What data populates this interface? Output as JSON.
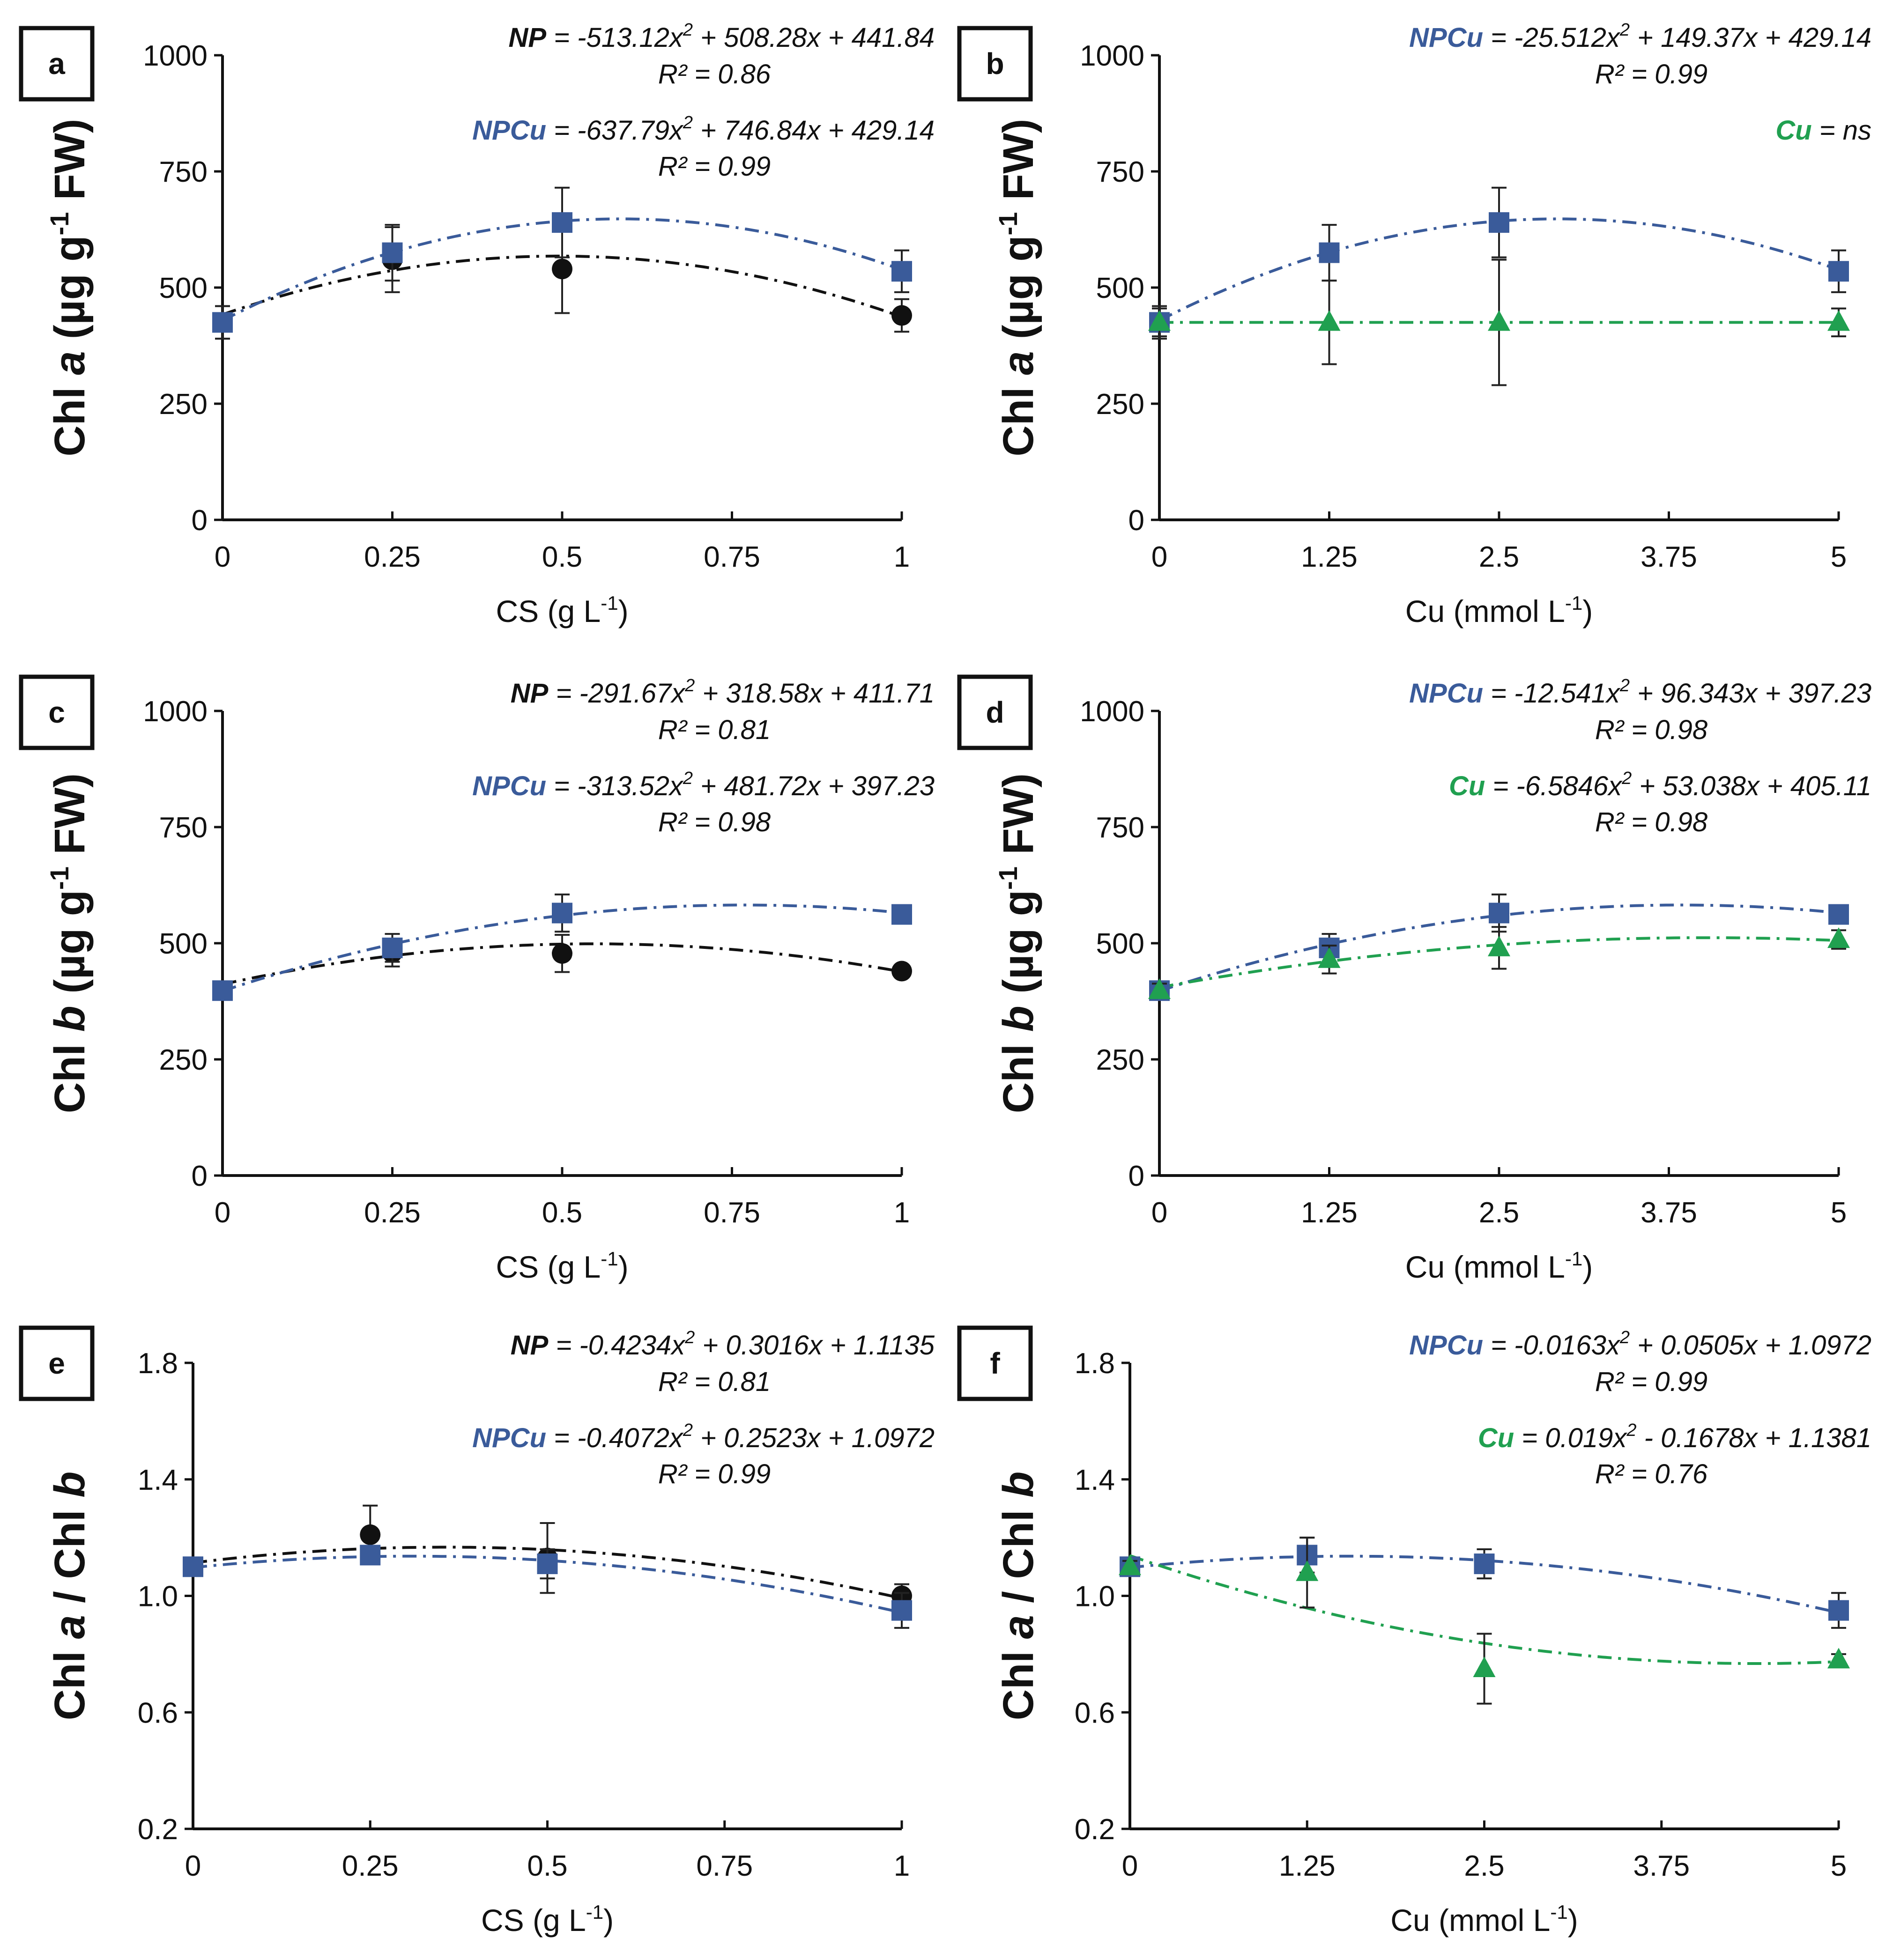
{
  "colors": {
    "NP": "#111111",
    "NPCu": "#3a5b9a",
    "Cu": "#20a050"
  },
  "chart_data": [
    {
      "type": "scatter",
      "panel": "a",
      "ylabel_pre": "Chl ",
      "ylabel_italic": "a",
      "ylabel_post": " (µg g",
      "ylabel_sup": "-1",
      "ylabel_end": " FW)",
      "xlabel": "CS (g L",
      "xlabel_sup": "-1",
      "xlabel_end": ")",
      "ylim": [
        0,
        1000
      ],
      "yticks": [
        0,
        250,
        500,
        750,
        1000
      ],
      "ytick_labels": [
        "0",
        "250",
        "500",
        "750",
        "1000"
      ],
      "xlim": [
        0,
        1
      ],
      "xticks": [
        0,
        0.25,
        0.5,
        0.75,
        1
      ],
      "xtick_labels": [
        "0",
        "0.25",
        "0.5",
        "0.75",
        "1"
      ],
      "series": [
        {
          "name": "NP",
          "marker": "circle",
          "x": [
            0,
            0.25,
            0.5,
            1
          ],
          "values": [
            425,
            560,
            540,
            440
          ],
          "errors": [
            35,
            70,
            95,
            35
          ],
          "fit": [
            -513.12,
            508.28,
            441.84
          ]
        },
        {
          "name": "NPCu",
          "marker": "square",
          "x": [
            0,
            0.25,
            0.5,
            1
          ],
          "values": [
            425,
            575,
            640,
            535
          ],
          "errors": [
            35,
            60,
            75,
            45
          ],
          "fit": [
            -637.79,
            746.84,
            429.14
          ]
        }
      ],
      "equations": [
        {
          "name": "NP",
          "rest": " = -513.12x",
          "sup": "2",
          "tail": " + 508.28x + 441.84",
          "r2": "R² = 0.86"
        },
        {
          "name": "NPCu",
          "rest": " = -637.79x",
          "sup": "2",
          "tail": " + 746.84x + 429.14",
          "r2": "R² = 0.99"
        }
      ]
    },
    {
      "type": "scatter",
      "panel": "b",
      "ylabel_pre": "Chl ",
      "ylabel_italic": "a",
      "ylabel_post": " (µg g",
      "ylabel_sup": "-1",
      "ylabel_end": " FW)",
      "xlabel": "Cu (mmol L",
      "xlabel_sup": "-1",
      "xlabel_end": ")",
      "ylim": [
        0,
        1000
      ],
      "yticks": [
        0,
        250,
        500,
        750,
        1000
      ],
      "ytick_labels": [
        "0",
        "250",
        "500",
        "750",
        "1000"
      ],
      "xlim": [
        0,
        5
      ],
      "xticks": [
        0,
        1.25,
        2.5,
        3.75,
        5
      ],
      "xtick_labels": [
        "0",
        "1.25",
        "2.5",
        "3.75",
        "5"
      ],
      "series": [
        {
          "name": "NPCu",
          "marker": "square",
          "x": [
            0,
            1.25,
            2.5,
            5
          ],
          "values": [
            425,
            575,
            640,
            535
          ],
          "errors": [
            35,
            60,
            75,
            45
          ],
          "fit": [
            -25.512,
            149.37,
            429.14
          ]
        },
        {
          "name": "Cu",
          "marker": "triangle",
          "x": [
            0,
            1.25,
            2.5,
            5
          ],
          "values": [
            425,
            425,
            425,
            425
          ],
          "errors": [
            30,
            90,
            135,
            30
          ],
          "fit": [
            0,
            0,
            425
          ]
        }
      ],
      "equations": [
        {
          "name": "NPCu",
          "rest": " = -25.512x",
          "sup": "2",
          "tail": " + 149.37x + 429.14",
          "r2": "R² = 0.99"
        },
        {
          "name": "Cu",
          "rest": " = ns",
          "sup": "",
          "tail": "",
          "r2": ""
        }
      ]
    },
    {
      "type": "scatter",
      "panel": "c",
      "ylabel_pre": "Chl ",
      "ylabel_italic": "b",
      "ylabel_post": " (µg g",
      "ylabel_sup": "-1",
      "ylabel_end": " FW)",
      "xlabel": "CS (g L",
      "xlabel_sup": "-1",
      "xlabel_end": ")",
      "ylim": [
        0,
        1000
      ],
      "yticks": [
        0,
        250,
        500,
        750,
        1000
      ],
      "ytick_labels": [
        "0",
        "250",
        "500",
        "750",
        "1000"
      ],
      "xlim": [
        0,
        1
      ],
      "xticks": [
        0,
        0.25,
        0.5,
        0.75,
        1
      ],
      "xtick_labels": [
        "0",
        "0.25",
        "0.5",
        "0.75",
        "1"
      ],
      "series": [
        {
          "name": "NP",
          "marker": "circle",
          "x": [
            0,
            0.25,
            0.5,
            1
          ],
          "values": [
            398,
            480,
            478,
            440
          ],
          "errors": [
            15,
            30,
            40,
            10
          ],
          "fit": [
            -291.67,
            318.58,
            411.71
          ]
        },
        {
          "name": "NPCu",
          "marker": "square",
          "x": [
            0,
            0.25,
            0.5,
            1
          ],
          "values": [
            398,
            490,
            565,
            562
          ],
          "errors": [
            15,
            30,
            40,
            10
          ],
          "fit": [
            -313.52,
            481.72,
            397.23
          ]
        }
      ],
      "equations": [
        {
          "name": "NP",
          "rest": " = -291.67x",
          "sup": "2",
          "tail": " + 318.58x + 411.71",
          "r2": "R² = 0.81"
        },
        {
          "name": "NPCu",
          "rest": " = -313.52x",
          "sup": "2",
          "tail": " + 481.72x + 397.23",
          "r2": "R² = 0.98"
        }
      ]
    },
    {
      "type": "scatter",
      "panel": "d",
      "ylabel_pre": "Chl ",
      "ylabel_italic": "b",
      "ylabel_post": " (µg g",
      "ylabel_sup": "-1",
      "ylabel_end": " FW)",
      "xlabel": "Cu (mmol L",
      "xlabel_sup": "-1",
      "xlabel_end": ")",
      "ylim": [
        0,
        1000
      ],
      "yticks": [
        0,
        250,
        500,
        750,
        1000
      ],
      "ytick_labels": [
        "0",
        "250",
        "500",
        "750",
        "1000"
      ],
      "xlim": [
        0,
        5
      ],
      "xticks": [
        0,
        1.25,
        2.5,
        3.75,
        5
      ],
      "xtick_labels": [
        "0",
        "1.25",
        "2.5",
        "3.75",
        "5"
      ],
      "series": [
        {
          "name": "NPCu",
          "marker": "square",
          "x": [
            0,
            1.25,
            2.5,
            5
          ],
          "values": [
            398,
            490,
            565,
            562
          ],
          "errors": [
            15,
            30,
            40,
            10
          ],
          "fit": [
            -12.541,
            96.343,
            397.23
          ]
        },
        {
          "name": "Cu",
          "marker": "triangle",
          "x": [
            0,
            1.25,
            2.5,
            5
          ],
          "values": [
            398,
            465,
            490,
            508
          ],
          "errors": [
            15,
            30,
            45,
            20
          ],
          "fit": [
            -6.5846,
            53.038,
            405.11
          ]
        }
      ],
      "equations": [
        {
          "name": "NPCu",
          "rest": " = -12.541x",
          "sup": "2",
          "tail": " + 96.343x + 397.23",
          "r2": "R² = 0.98"
        },
        {
          "name": "Cu",
          "rest": " = -6.5846x",
          "sup": "2",
          "tail": " + 53.038x + 405.11",
          "r2": "R² = 0.98"
        }
      ]
    },
    {
      "type": "scatter",
      "panel": "e",
      "ylabel_pre": "Chl ",
      "ylabel_italic": "a",
      "ylabel_post": " / Chl ",
      "ylabel_sup": "",
      "ylabel_end": "",
      "ylabel_italic2": "b",
      "xlabel": "CS (g L",
      "xlabel_sup": "-1",
      "xlabel_end": ")",
      "ylim": [
        0.2,
        1.8
      ],
      "yticks": [
        0.2,
        0.6,
        1.0,
        1.4,
        1.8
      ],
      "ytick_labels": [
        "0.2",
        "0.6",
        "1.0",
        "1.4",
        "1.8"
      ],
      "xlim": [
        0,
        1
      ],
      "xticks": [
        0,
        0.25,
        0.5,
        0.75,
        1
      ],
      "xtick_labels": [
        "0",
        "0.25",
        "0.5",
        "0.75",
        "1"
      ],
      "series": [
        {
          "name": "NP",
          "marker": "circle",
          "x": [
            0,
            0.25,
            0.5,
            1
          ],
          "values": [
            1.1,
            1.21,
            1.13,
            1.0
          ],
          "errors": [
            0.02,
            0.1,
            0.12,
            0.04
          ],
          "fit": [
            -0.4234,
            0.3016,
            1.1135
          ]
        },
        {
          "name": "NPCu",
          "marker": "square",
          "x": [
            0,
            0.25,
            0.5,
            1
          ],
          "values": [
            1.1,
            1.14,
            1.11,
            0.95
          ],
          "errors": [
            0.02,
            0.02,
            0.05,
            0.06
          ],
          "fit": [
            -0.4072,
            0.2523,
            1.0972
          ]
        }
      ],
      "equations": [
        {
          "name": "NP",
          "rest": " = -0.4234x",
          "sup": "2",
          "tail": " + 0.3016x + 1.1135",
          "r2": "R² = 0.81"
        },
        {
          "name": "NPCu",
          "rest": " = -0.4072x",
          "sup": "2",
          "tail": " + 0.2523x + 1.0972",
          "r2": "R² = 0.99"
        }
      ]
    },
    {
      "type": "scatter",
      "panel": "f",
      "ylabel_pre": "Chl ",
      "ylabel_italic": "a",
      "ylabel_post": " / Chl ",
      "ylabel_sup": "",
      "ylabel_end": "",
      "ylabel_italic2": "b",
      "xlabel": "Cu (mmol L",
      "xlabel_sup": "-1",
      "xlabel_end": ")",
      "ylim": [
        0.2,
        1.8
      ],
      "yticks": [
        0.2,
        0.6,
        1.0,
        1.4,
        1.8
      ],
      "ytick_labels": [
        "0.2",
        "0.6",
        "1.0",
        "1.4",
        "1.8"
      ],
      "xlim": [
        0,
        5
      ],
      "xticks": [
        0,
        1.25,
        2.5,
        3.75,
        5
      ],
      "xtick_labels": [
        "0",
        "1.25",
        "2.5",
        "3.75",
        "5"
      ],
      "series": [
        {
          "name": "NPCu",
          "marker": "square",
          "x": [
            0,
            1.25,
            2.5,
            5
          ],
          "values": [
            1.1,
            1.14,
            1.11,
            0.95
          ],
          "errors": [
            0.02,
            0.06,
            0.05,
            0.06
          ],
          "fit": [
            -0.0163,
            0.0505,
            1.0972
          ]
        },
        {
          "name": "Cu",
          "marker": "triangle",
          "x": [
            0,
            1.25,
            2.5,
            5
          ],
          "values": [
            1.1,
            1.08,
            0.75,
            0.78
          ],
          "errors": [
            0.02,
            0.12,
            0.12,
            0.02
          ],
          "fit": [
            0.019,
            -0.1678,
            1.1381
          ]
        }
      ],
      "equations": [
        {
          "name": "NPCu",
          "rest": " = -0.0163x",
          "sup": "2",
          "tail": " + 0.0505x + 1.0972",
          "r2": "R² = 0.99"
        },
        {
          "name": "Cu",
          "rest": " = 0.019x",
          "sup": "2",
          "tail": " - 0.1678x + 1.1381",
          "r2": "R² = 0.76"
        }
      ]
    }
  ]
}
